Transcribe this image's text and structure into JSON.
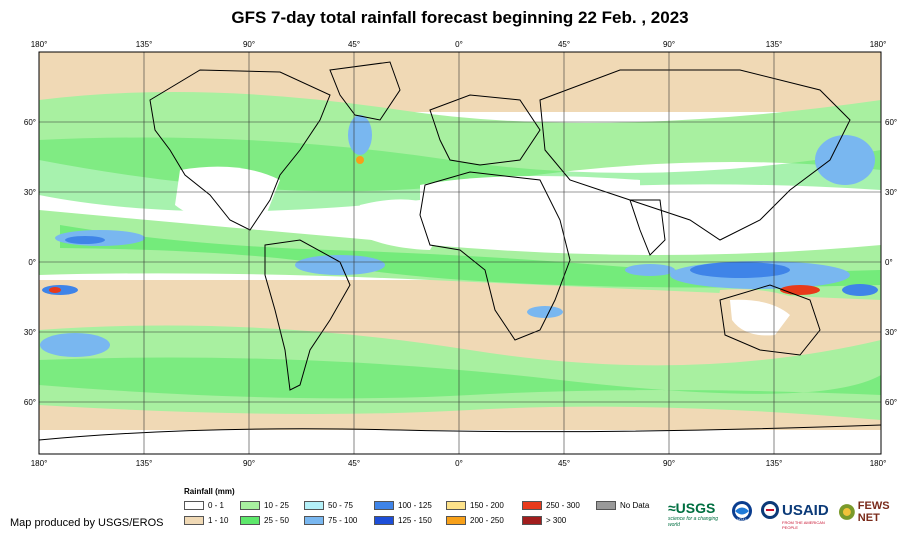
{
  "title": "GFS 7-day total rainfall forecast beginning 22 Feb. , 2023",
  "lon_labels": [
    "180°",
    "135°",
    "90°",
    "45°",
    "0°",
    "45°",
    "90°",
    "135°",
    "180°"
  ],
  "lat_labels": [
    "60°",
    "30°",
    "0°",
    "30°",
    "60°"
  ],
  "legend": {
    "title": "Rainfall (mm)",
    "items": [
      {
        "label": "0 - 1",
        "color": "#ffffff"
      },
      {
        "label": "1 - 10",
        "color": "#f0d9b5"
      },
      {
        "label": "10 - 25",
        "color": "#a8f0a0"
      },
      {
        "label": "25 - 50",
        "color": "#5ee86b"
      },
      {
        "label": "50 - 75",
        "color": "#b4f0f8"
      },
      {
        "label": "75 - 100",
        "color": "#79b7f0"
      },
      {
        "label": "100 - 125",
        "color": "#3f84e8"
      },
      {
        "label": "125 - 150",
        "color": "#1d4ed8"
      },
      {
        "label": "150 - 200",
        "color": "#fde28a"
      },
      {
        "label": "200 - 250",
        "color": "#f7a019"
      },
      {
        "label": "250 - 300",
        "color": "#e83a1b"
      },
      {
        "label": "> 300",
        "color": "#a11d1d"
      },
      {
        "label": "No Data",
        "color": "#9a9a9a"
      }
    ]
  },
  "credit": "Map produced by USGS/EROS",
  "logos": {
    "usgs": "≈USGS",
    "usgs_tagline": "science for a changing world",
    "noaa": "NOAA",
    "usaid": "USAID",
    "usaid_tagline": "FROM THE AMERICAN PEOPLE",
    "fews": "FEWS NET"
  },
  "colors": {
    "land_outline": "#000000",
    "grid": "#333333",
    "frame": "#000000"
  }
}
